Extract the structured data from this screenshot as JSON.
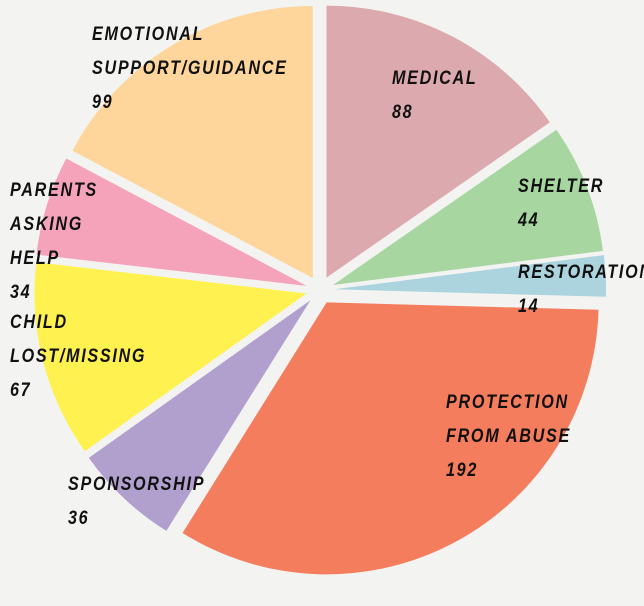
{
  "chart_data": {
    "type": "pie",
    "categories": [
      "MEDICAL",
      "SHELTER",
      "RESTORATION",
      "PROTECTION FROM ABUSE",
      "SPONSORSHIP",
      "CHILD LOST/MISSING",
      "PARENTS ASKING HELP",
      "EMOTIONAL SUPPORT/GUIDANCE"
    ],
    "values": [
      88,
      44,
      14,
      192,
      36,
      67,
      34,
      99
    ],
    "colors": [
      "#dcaaae",
      "#a7d6a1",
      "#acd4de",
      "#f47d5d",
      "#b1a0cd",
      "#fff150",
      "#f5a3ba",
      "#fed69c"
    ]
  }
}
